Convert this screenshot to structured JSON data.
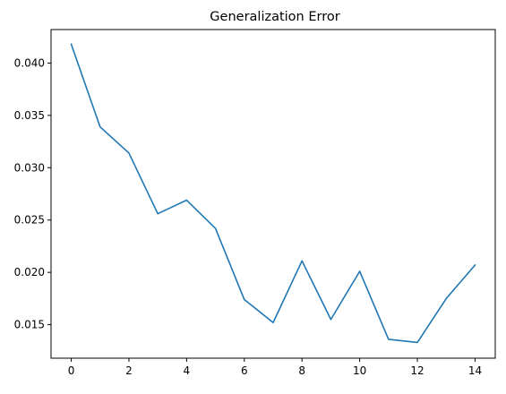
{
  "chart_data": {
    "type": "line",
    "title": "Generalization Error",
    "xlabel": "",
    "ylabel": "",
    "x": [
      0,
      1,
      2,
      3,
      4,
      5,
      6,
      7,
      8,
      9,
      10,
      11,
      12,
      13,
      14
    ],
    "series": [
      {
        "values": [
          0.0418,
          0.0339,
          0.0314,
          0.0256,
          0.0269,
          0.0242,
          0.0174,
          0.0152,
          0.0211,
          0.0155,
          0.0201,
          0.0136,
          0.0133,
          0.0175,
          0.0207
        ],
        "color": "#1f77b4"
      }
    ],
    "xlim": [
      -0.7,
      14.7
    ],
    "ylim": [
      0.0118,
      0.0432
    ],
    "xticks": [
      0,
      2,
      4,
      6,
      8,
      10,
      12,
      14
    ],
    "xtick_labels": [
      "0",
      "2",
      "4",
      "6",
      "8",
      "10",
      "12",
      "14"
    ],
    "yticks": [
      0.015,
      0.02,
      0.025,
      0.03,
      0.035,
      0.04
    ],
    "ytick_labels": [
      "0.015",
      "0.020",
      "0.025",
      "0.030",
      "0.035",
      "0.040"
    ],
    "grid": false,
    "legend": "none"
  }
}
